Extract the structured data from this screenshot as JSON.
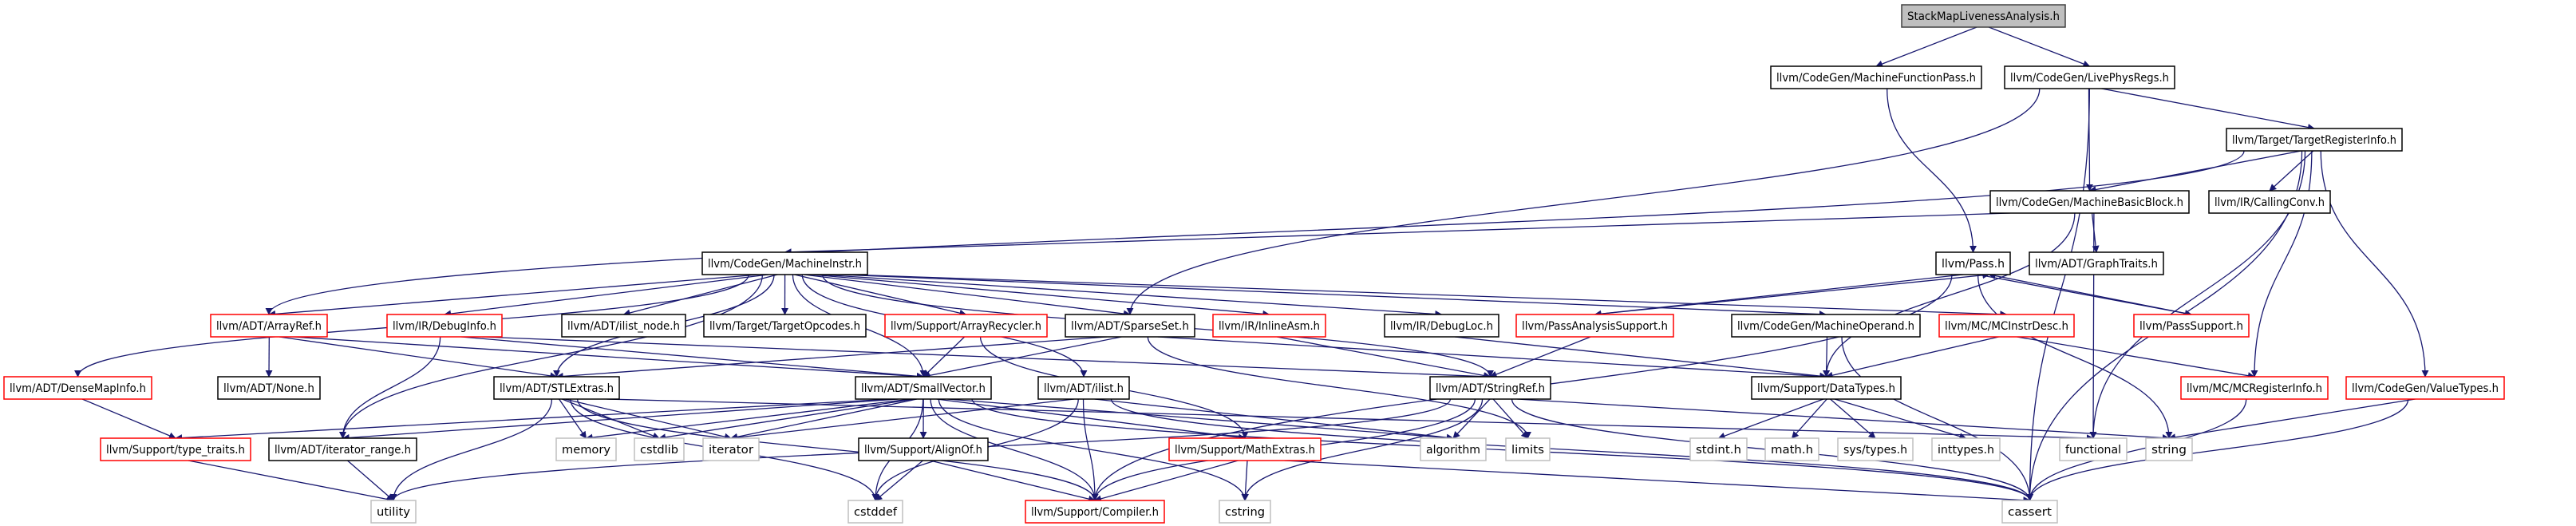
{
  "colors": {
    "edge": "#191970",
    "root_fill": "#bfbfbf",
    "documented_border": "#000000",
    "truncated_border": "#ff0000",
    "system_border": "#bfbfbf"
  },
  "nodes": [
    {
      "id": "root",
      "label": "StackMapLivenessAnalysis.h",
      "kind": "root"
    },
    {
      "id": "mfp",
      "label": "llvm/CodeGen/MachineFunctionPass.h",
      "kind": "normal"
    },
    {
      "id": "lpr",
      "label": "llvm/CodeGen/LivePhysRegs.h",
      "kind": "normal"
    },
    {
      "id": "tri",
      "label": "llvm/Target/TargetRegisterInfo.h",
      "kind": "normal"
    },
    {
      "id": "mbb",
      "label": "llvm/CodeGen/MachineBasicBlock.h",
      "kind": "normal"
    },
    {
      "id": "cc",
      "label": "llvm/IR/CallingConv.h",
      "kind": "normal"
    },
    {
      "id": "mi",
      "label": "llvm/CodeGen/MachineInstr.h",
      "kind": "normal"
    },
    {
      "id": "pass",
      "label": "llvm/Pass.h",
      "kind": "normal"
    },
    {
      "id": "gt",
      "label": "llvm/ADT/GraphTraits.h",
      "kind": "normal"
    },
    {
      "id": "arrayref",
      "label": "llvm/ADT/ArrayRef.h",
      "kind": "truncated"
    },
    {
      "id": "debuginfo",
      "label": "llvm/IR/DebugInfo.h",
      "kind": "truncated"
    },
    {
      "id": "ilistnode",
      "label": "llvm/ADT/ilist_node.h",
      "kind": "normal"
    },
    {
      "id": "topc",
      "label": "llvm/Target/TargetOpcodes.h",
      "kind": "normal"
    },
    {
      "id": "arec",
      "label": "llvm/Support/ArrayRecycler.h",
      "kind": "truncated"
    },
    {
      "id": "sparse",
      "label": "llvm/ADT/SparseSet.h",
      "kind": "normal"
    },
    {
      "id": "inlineasm",
      "label": "llvm/IR/InlineAsm.h",
      "kind": "truncated"
    },
    {
      "id": "debugloc",
      "label": "llvm/IR/DebugLoc.h",
      "kind": "normal"
    },
    {
      "id": "pas",
      "label": "llvm/PassAnalysisSupport.h",
      "kind": "truncated"
    },
    {
      "id": "mop",
      "label": "llvm/CodeGen/MachineOperand.h",
      "kind": "normal"
    },
    {
      "id": "mcid",
      "label": "llvm/MC/MCInstrDesc.h",
      "kind": "truncated"
    },
    {
      "id": "passsup",
      "label": "llvm/PassSupport.h",
      "kind": "truncated"
    },
    {
      "id": "dmi",
      "label": "llvm/ADT/DenseMapInfo.h",
      "kind": "truncated"
    },
    {
      "id": "none",
      "label": "llvm/ADT/None.h",
      "kind": "normal"
    },
    {
      "id": "stl",
      "label": "llvm/ADT/STLExtras.h",
      "kind": "normal"
    },
    {
      "id": "sv",
      "label": "llvm/ADT/SmallVector.h",
      "kind": "normal"
    },
    {
      "id": "ilist",
      "label": "llvm/ADT/ilist.h",
      "kind": "normal"
    },
    {
      "id": "sref",
      "label": "llvm/ADT/StringRef.h",
      "kind": "normal"
    },
    {
      "id": "dt",
      "label": "llvm/Support/DataTypes.h",
      "kind": "normal"
    },
    {
      "id": "mcri",
      "label": "llvm/MC/MCRegisterInfo.h",
      "kind": "truncated"
    },
    {
      "id": "vt",
      "label": "llvm/CodeGen/ValueTypes.h",
      "kind": "truncated"
    },
    {
      "id": "tt",
      "label": "llvm/Support/type_traits.h",
      "kind": "truncated"
    },
    {
      "id": "itr",
      "label": "llvm/ADT/iterator_range.h",
      "kind": "normal"
    },
    {
      "id": "memory",
      "label": "memory",
      "kind": "system"
    },
    {
      "id": "cstdlib",
      "label": "cstdlib",
      "kind": "system"
    },
    {
      "id": "iterator",
      "label": "iterator",
      "kind": "system"
    },
    {
      "id": "alignof",
      "label": "llvm/Support/AlignOf.h",
      "kind": "normal"
    },
    {
      "id": "mathx",
      "label": "llvm/Support/MathExtras.h",
      "kind": "truncated"
    },
    {
      "id": "algorithm",
      "label": "algorithm",
      "kind": "system"
    },
    {
      "id": "limits",
      "label": "limits",
      "kind": "system"
    },
    {
      "id": "stdint",
      "label": "stdint.h",
      "kind": "system"
    },
    {
      "id": "math",
      "label": "math.h",
      "kind": "system"
    },
    {
      "id": "systypes",
      "label": "sys/types.h",
      "kind": "system"
    },
    {
      "id": "inttypes",
      "label": "inttypes.h",
      "kind": "system"
    },
    {
      "id": "functional",
      "label": "functional",
      "kind": "system"
    },
    {
      "id": "string",
      "label": "string",
      "kind": "system"
    },
    {
      "id": "utility",
      "label": "utility",
      "kind": "system"
    },
    {
      "id": "cstddef",
      "label": "cstddef",
      "kind": "system"
    },
    {
      "id": "compiler",
      "label": "llvm/Support/Compiler.h",
      "kind": "truncated"
    },
    {
      "id": "cstring",
      "label": "cstring",
      "kind": "system"
    },
    {
      "id": "cassert",
      "label": "cassert",
      "kind": "system"
    }
  ],
  "edges": [
    [
      "root",
      "mfp"
    ],
    [
      "root",
      "lpr"
    ],
    [
      "mfp",
      "pass"
    ],
    [
      "lpr",
      "sparse"
    ],
    [
      "lpr",
      "mbb"
    ],
    [
      "lpr",
      "tri"
    ],
    [
      "lpr",
      "cassert"
    ],
    [
      "tri",
      "arrayref"
    ],
    [
      "tri",
      "mbb"
    ],
    [
      "tri",
      "cc"
    ],
    [
      "tri",
      "functional"
    ],
    [
      "tri",
      "mcri"
    ],
    [
      "tri",
      "vt"
    ],
    [
      "tri",
      "cassert"
    ],
    [
      "mbb",
      "mi"
    ],
    [
      "mbb",
      "gt"
    ],
    [
      "mbb",
      "dt"
    ],
    [
      "mbb",
      "functional"
    ],
    [
      "mi",
      "arrayref"
    ],
    [
      "mi",
      "debuginfo"
    ],
    [
      "mi",
      "ilistnode"
    ],
    [
      "mi",
      "topc"
    ],
    [
      "mi",
      "arec"
    ],
    [
      "mi",
      "sparse"
    ],
    [
      "mi",
      "inlineasm"
    ],
    [
      "mi",
      "debugloc"
    ],
    [
      "mi",
      "mop"
    ],
    [
      "mi",
      "mcid"
    ],
    [
      "mi",
      "dmi"
    ],
    [
      "mi",
      "stl"
    ],
    [
      "mi",
      "sv"
    ],
    [
      "mi",
      "ilist"
    ],
    [
      "mi",
      "itr"
    ],
    [
      "mi",
      "sref"
    ],
    [
      "pass",
      "pas"
    ],
    [
      "pass",
      "passsup"
    ],
    [
      "pass",
      "string"
    ],
    [
      "pass",
      "compiler"
    ],
    [
      "passsup",
      "pass"
    ],
    [
      "pas",
      "pass"
    ],
    [
      "pas",
      "sref"
    ],
    [
      "mop",
      "dt"
    ],
    [
      "mop",
      "cassert"
    ],
    [
      "mcid",
      "dt"
    ],
    [
      "mcid",
      "mcri"
    ],
    [
      "mcri",
      "cassert"
    ],
    [
      "vt",
      "string"
    ],
    [
      "vt",
      "cassert"
    ],
    [
      "dt",
      "stdint"
    ],
    [
      "dt",
      "math"
    ],
    [
      "dt",
      "systypes"
    ],
    [
      "dt",
      "inttypes"
    ],
    [
      "arrayref",
      "none"
    ],
    [
      "arrayref",
      "stl"
    ],
    [
      "arrayref",
      "sv"
    ],
    [
      "debuginfo",
      "itr"
    ],
    [
      "debuginfo",
      "sv"
    ],
    [
      "debuginfo",
      "sref"
    ],
    [
      "dmi",
      "tt"
    ],
    [
      "stl",
      "memory"
    ],
    [
      "stl",
      "cstdlib"
    ],
    [
      "stl",
      "iterator"
    ],
    [
      "stl",
      "utility"
    ],
    [
      "stl",
      "cstddef"
    ],
    [
      "stl",
      "compiler"
    ],
    [
      "stl",
      "functional"
    ],
    [
      "tt",
      "utility"
    ],
    [
      "itr",
      "utility"
    ],
    [
      "arec",
      "sv"
    ],
    [
      "arec",
      "mathx"
    ],
    [
      "sparse",
      "sv"
    ],
    [
      "sparse",
      "stl"
    ],
    [
      "sparse",
      "dt"
    ],
    [
      "sparse",
      "limits"
    ],
    [
      "inlineasm",
      "sref"
    ],
    [
      "debugloc",
      "dt"
    ],
    [
      "sv",
      "alignof"
    ],
    [
      "sv",
      "mathx"
    ],
    [
      "sv",
      "compiler"
    ],
    [
      "sv",
      "cstddef"
    ],
    [
      "sv",
      "cstring"
    ],
    [
      "sv",
      "cstdlib"
    ],
    [
      "sv",
      "iterator"
    ],
    [
      "sv",
      "memory"
    ],
    [
      "sv",
      "algorithm"
    ],
    [
      "sv",
      "tt"
    ],
    [
      "sv",
      "itr"
    ],
    [
      "sv",
      "cassert"
    ],
    [
      "ilist",
      "algorithm"
    ],
    [
      "ilist",
      "cassert"
    ],
    [
      "ilist",
      "cstddef"
    ],
    [
      "ilist",
      "iterator"
    ],
    [
      "ilist",
      "compiler"
    ],
    [
      "sref",
      "algorithm"
    ],
    [
      "sref",
      "limits"
    ],
    [
      "sref",
      "string"
    ],
    [
      "sref",
      "cassert"
    ],
    [
      "sref",
      "cstring"
    ],
    [
      "sref",
      "utility"
    ],
    [
      "sref",
      "compiler"
    ],
    [
      "alignof",
      "cstddef"
    ],
    [
      "alignof",
      "compiler"
    ],
    [
      "mathx",
      "compiler"
    ],
    [
      "mathx",
      "cstring"
    ],
    [
      "mathx",
      "cassert"
    ]
  ]
}
